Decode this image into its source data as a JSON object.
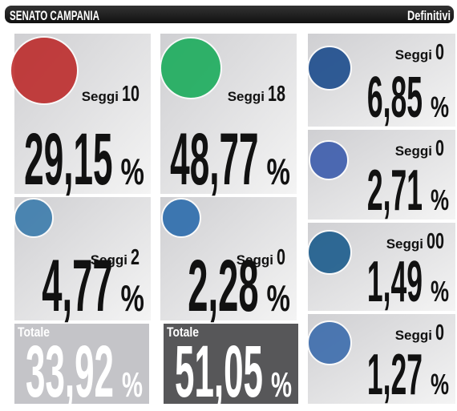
{
  "header": {
    "title": "SENATO CAMPANIA",
    "status": "Definitivi"
  },
  "labels": {
    "seats": "Seggi",
    "percent": "%"
  },
  "parties": [
    {
      "seats": "10",
      "share": "29,15"
    },
    {
      "seats": "2",
      "share": "4,77"
    },
    {
      "seats": "18",
      "share": "48,77"
    },
    {
      "seats": "0",
      "share": "2,28"
    },
    {
      "seats": "0",
      "share": "6,85"
    },
    {
      "seats": "0",
      "share": "2,71"
    },
    {
      "seats": "00",
      "share": "1,49"
    },
    {
      "seats": "0",
      "share": "1,27"
    }
  ],
  "totals": [
    {
      "label": "Totale",
      "share": "33,92"
    },
    {
      "label": "Totale",
      "share": "51,05"
    }
  ]
}
